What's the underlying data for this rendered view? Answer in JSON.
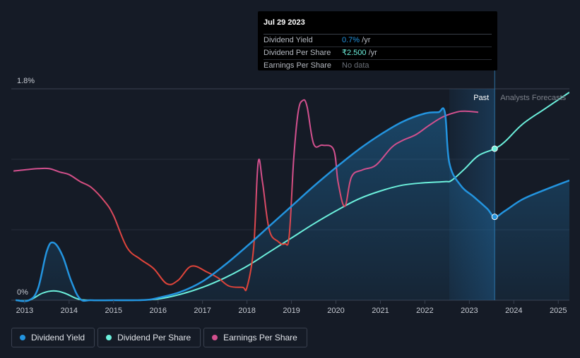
{
  "tooltip": {
    "date": "Jul 29 2023",
    "rows": [
      {
        "label": "Dividend Yield",
        "value": "0.7%",
        "suffix": " /yr",
        "color": "#2394df"
      },
      {
        "label": "Dividend Per Share",
        "value": "₹2.500",
        "suffix": " /yr",
        "color": "#6cf0dc"
      },
      {
        "label": "Earnings Per Share",
        "value": "No data",
        "suffix": "",
        "color": "#6b7079"
      }
    ]
  },
  "legend": [
    {
      "label": "Dividend Yield",
      "color": "#2394df"
    },
    {
      "label": "Dividend Per Share",
      "color": "#6cf0dc"
    },
    {
      "label": "Earnings Per Share",
      "color": "#d2508e"
    }
  ],
  "chart_data": {
    "type": "line",
    "y_axis": {
      "top_label": "1.8%",
      "bottom_label": "0%",
      "ylim": [
        0,
        1.8
      ],
      "unit": "%"
    },
    "x_axis": {
      "tick_labels": [
        "2013",
        "2014",
        "2015",
        "2016",
        "2017",
        "2018",
        "2019",
        "2020",
        "2021",
        "2022",
        "2023",
        "2024",
        "2025"
      ],
      "xlim": [
        2012.7,
        2025.25
      ]
    },
    "past_label": "Past",
    "forecast_label": "Analysts Forecasts",
    "past_start": 2022.55,
    "today": 2023.57,
    "series": [
      {
        "name": "Dividend Yield",
        "color": "#2394df",
        "area": true,
        "points": [
          [
            2012.8,
            0
          ],
          [
            2013.1,
            0
          ],
          [
            2013.3,
            0.1
          ],
          [
            2013.5,
            0.42
          ],
          [
            2013.65,
            0.49
          ],
          [
            2013.85,
            0.38
          ],
          [
            2014.05,
            0.16
          ],
          [
            2014.25,
            0.01
          ],
          [
            2014.5,
            0
          ],
          [
            2015,
            0
          ],
          [
            2015.5,
            0
          ],
          [
            2015.8,
            0.005
          ],
          [
            2016,
            0.02
          ],
          [
            2016.5,
            0.07
          ],
          [
            2017,
            0.16
          ],
          [
            2017.5,
            0.3
          ],
          [
            2018,
            0.46
          ],
          [
            2018.5,
            0.63
          ],
          [
            2019,
            0.8
          ],
          [
            2019.5,
            0.97
          ],
          [
            2020,
            1.13
          ],
          [
            2020.5,
            1.28
          ],
          [
            2021,
            1.41
          ],
          [
            2021.5,
            1.52
          ],
          [
            2022,
            1.59
          ],
          [
            2022.3,
            1.6
          ],
          [
            2022.45,
            1.6
          ],
          [
            2022.55,
            1.17
          ],
          [
            2022.8,
            0.98
          ],
          [
            2023.1,
            0.88
          ],
          [
            2023.4,
            0.78
          ],
          [
            2023.57,
            0.71
          ],
          [
            2023.8,
            0.76
          ],
          [
            2024.2,
            0.86
          ],
          [
            2024.7,
            0.94
          ],
          [
            2025.25,
            1.02
          ]
        ]
      },
      {
        "name": "Dividend Per Share",
        "color": "#6cf0dc",
        "area": false,
        "points": [
          [
            2012.8,
            0
          ],
          [
            2013.1,
            0
          ],
          [
            2013.4,
            0.06
          ],
          [
            2013.65,
            0.08
          ],
          [
            2013.9,
            0.06
          ],
          [
            2014.2,
            0.01
          ],
          [
            2014.5,
            0
          ],
          [
            2015,
            0
          ],
          [
            2015.5,
            0
          ],
          [
            2016,
            0.01
          ],
          [
            2016.5,
            0.05
          ],
          [
            2017,
            0.11
          ],
          [
            2017.5,
            0.19
          ],
          [
            2018,
            0.29
          ],
          [
            2018.5,
            0.41
          ],
          [
            2019,
            0.53
          ],
          [
            2019.5,
            0.65
          ],
          [
            2020,
            0.76
          ],
          [
            2020.5,
            0.86
          ],
          [
            2021,
            0.93
          ],
          [
            2021.5,
            0.98
          ],
          [
            2022,
            1.0
          ],
          [
            2022.45,
            1.01
          ],
          [
            2022.6,
            1.02
          ],
          [
            2022.9,
            1.12
          ],
          [
            2023.2,
            1.23
          ],
          [
            2023.57,
            1.29
          ],
          [
            2023.8,
            1.35
          ],
          [
            2024.2,
            1.5
          ],
          [
            2024.7,
            1.63
          ],
          [
            2025.25,
            1.77
          ]
        ]
      },
      {
        "name": "Earnings Per Share",
        "color": "#d2508e",
        "area": false,
        "gradient": [
          "#e0443a",
          "#d2508e"
        ],
        "points": [
          [
            2012.75,
            1.1
          ],
          [
            2013.0,
            1.11
          ],
          [
            2013.3,
            1.12
          ],
          [
            2013.55,
            1.12
          ],
          [
            2013.8,
            1.09
          ],
          [
            2014.0,
            1.07
          ],
          [
            2014.25,
            1.01
          ],
          [
            2014.5,
            0.96
          ],
          [
            2014.8,
            0.84
          ],
          [
            2015.0,
            0.72
          ],
          [
            2015.3,
            0.45
          ],
          [
            2015.6,
            0.35
          ],
          [
            2015.9,
            0.27
          ],
          [
            2016.2,
            0.14
          ],
          [
            2016.45,
            0.17
          ],
          [
            2016.75,
            0.29
          ],
          [
            2017.1,
            0.24
          ],
          [
            2017.35,
            0.19
          ],
          [
            2017.6,
            0.12
          ],
          [
            2017.9,
            0.11
          ],
          [
            2018.0,
            0.11
          ],
          [
            2018.15,
            0.45
          ],
          [
            2018.25,
            1.17
          ],
          [
            2018.35,
            1.0
          ],
          [
            2018.5,
            0.6
          ],
          [
            2018.7,
            0.5
          ],
          [
            2018.85,
            0.48
          ],
          [
            2018.95,
            0.55
          ],
          [
            2019.05,
            1.2
          ],
          [
            2019.15,
            1.6
          ],
          [
            2019.25,
            1.7
          ],
          [
            2019.35,
            1.65
          ],
          [
            2019.5,
            1.33
          ],
          [
            2019.7,
            1.32
          ],
          [
            2019.95,
            1.28
          ],
          [
            2020.05,
            1.0
          ],
          [
            2020.2,
            0.8
          ],
          [
            2020.35,
            1.05
          ],
          [
            2020.6,
            1.11
          ],
          [
            2020.9,
            1.15
          ],
          [
            2021.25,
            1.3
          ],
          [
            2021.5,
            1.36
          ],
          [
            2021.8,
            1.41
          ],
          [
            2022.1,
            1.49
          ],
          [
            2022.4,
            1.56
          ],
          [
            2022.7,
            1.6
          ],
          [
            2022.9,
            1.61
          ],
          [
            2023.2,
            1.6
          ]
        ]
      }
    ],
    "markers": [
      {
        "series": "Dividend Per Share",
        "x": 2023.57,
        "y": 1.29
      },
      {
        "series": "Dividend Yield",
        "x": 2023.57,
        "y": 0.71
      }
    ]
  }
}
